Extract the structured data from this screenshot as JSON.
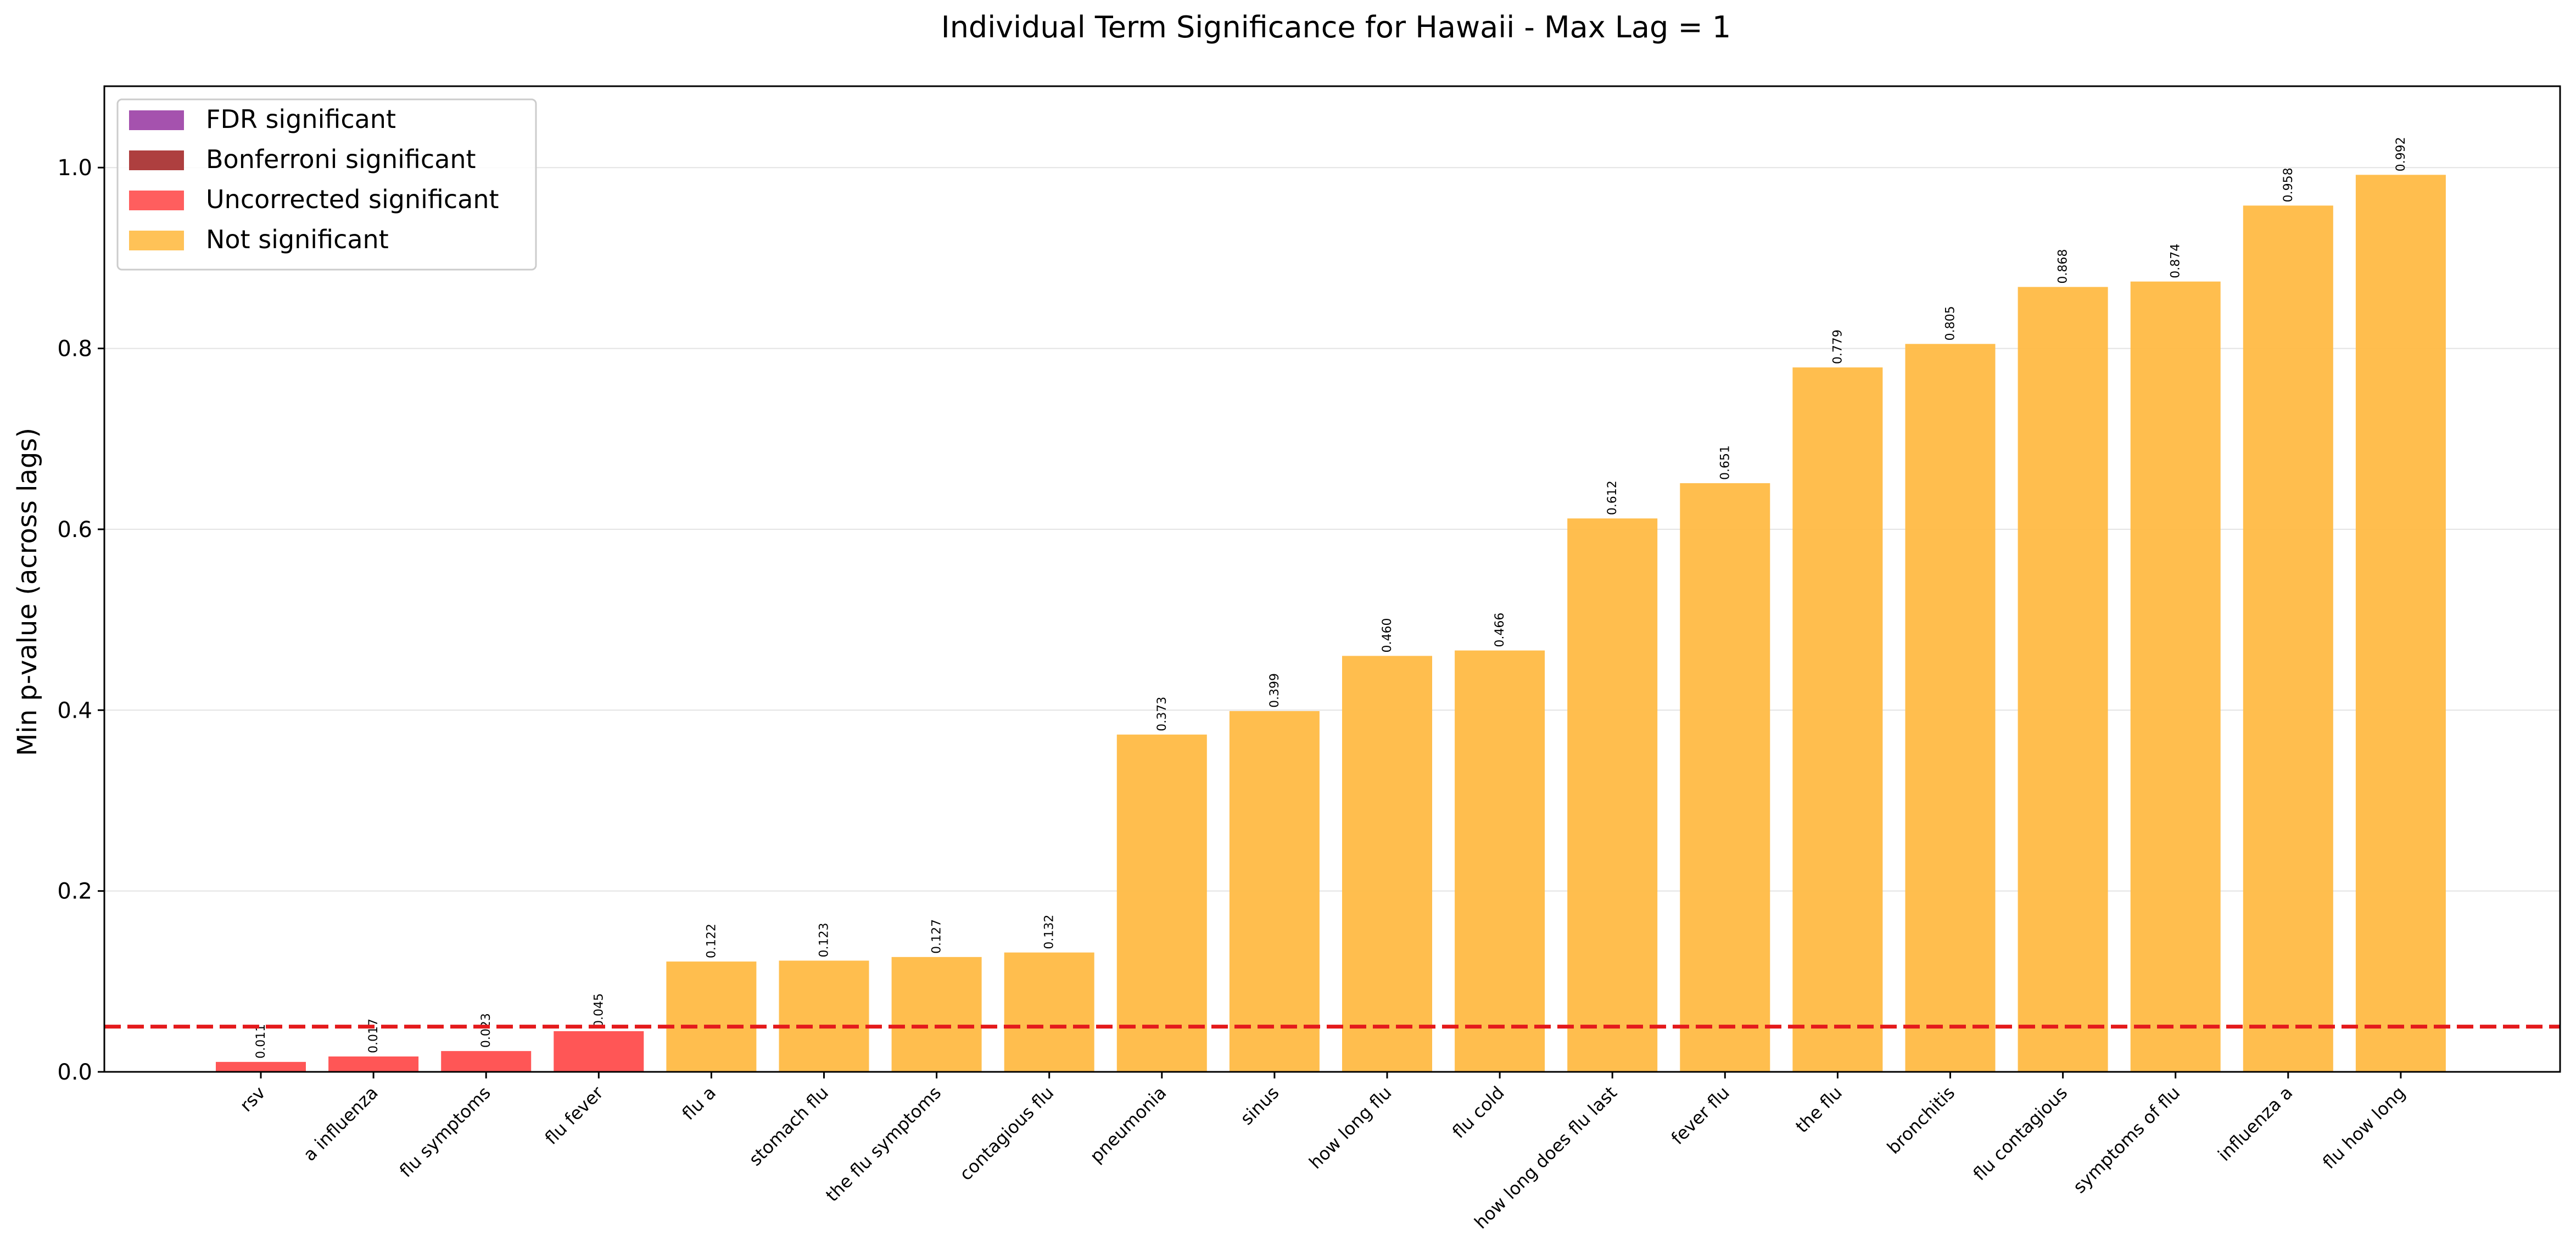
{
  "chart_data": {
    "type": "bar",
    "title": "Individual Term Significance for Hawaii - Max Lag = 1",
    "xlabel": "",
    "ylabel": "Min p-value (across lags)",
    "ylim": [
      0,
      1.09
    ],
    "yticks": [
      0.0,
      0.2,
      0.4,
      0.6,
      0.8,
      1.0
    ],
    "ytick_labels": [
      "0.0",
      "0.2",
      "0.4",
      "0.6",
      "0.8",
      "1.0"
    ],
    "grid": "y-axis, light",
    "legend_placement": "upper-left",
    "categories": [
      "rsv",
      "a influenza",
      "flu symptoms",
      "flu fever",
      "flu a",
      "stomach flu",
      "the flu symptoms",
      "contagious flu",
      "pneumonia",
      "sinus",
      "how long flu",
      "flu cold",
      "how long does flu last",
      "fever flu",
      "the flu",
      "bronchitis",
      "flu contagious",
      "symptoms of flu",
      "influenza a",
      "flu how long"
    ],
    "values": [
      0.011,
      0.017,
      0.023,
      0.045,
      0.122,
      0.123,
      0.127,
      0.132,
      0.373,
      0.399,
      0.46,
      0.466,
      0.612,
      0.651,
      0.779,
      0.805,
      0.868,
      0.874,
      0.958,
      0.992
    ],
    "value_labels": [
      "0.011",
      "0.017",
      "0.023",
      "0.045",
      "0.122",
      "0.123",
      "0.127",
      "0.132",
      "0.373",
      "0.399",
      "0.460",
      "0.466",
      "0.612",
      "0.651",
      "0.779",
      "0.805",
      "0.868",
      "0.874",
      "0.958",
      "0.992"
    ],
    "bar_status": [
      "uncorrected",
      "uncorrected",
      "uncorrected",
      "uncorrected",
      "not",
      "not",
      "not",
      "not",
      "not",
      "not",
      "not",
      "not",
      "not",
      "not",
      "not",
      "not",
      "not",
      "not",
      "not",
      "not"
    ],
    "threshold": 0.05,
    "threshold_color": "#e41a1c",
    "legend": [
      {
        "label": "FDR significant",
        "key": "fdr",
        "color": "#9b3fa5"
      },
      {
        "label": "Bonferroni significant",
        "key": "bonferroni",
        "color": "#a52a2a"
      },
      {
        "label": "Uncorrected significant",
        "key": "uncorrected",
        "color": "#ff4d4d"
      },
      {
        "label": "Not significant",
        "key": "not",
        "color": "#ffbb45"
      }
    ]
  }
}
